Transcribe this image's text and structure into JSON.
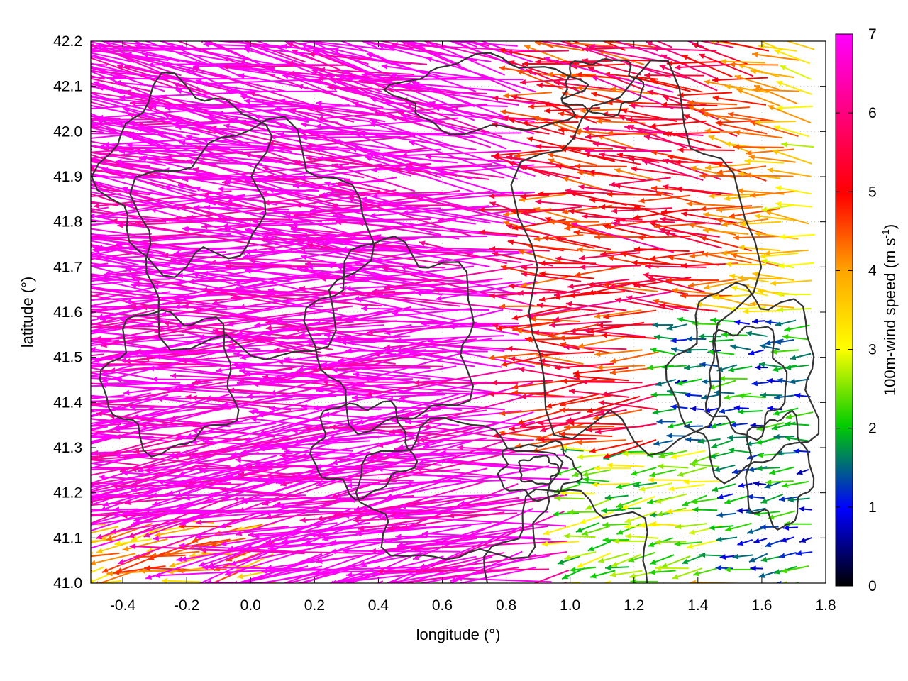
{
  "chart_data": {
    "type": "vector_field",
    "xlabel": "longitude (°)",
    "ylabel": "latitude (°)",
    "xlim": [
      -0.5,
      1.8
    ],
    "ylim": [
      41.0,
      42.2
    ],
    "xticks": [
      -0.4,
      -0.2,
      0.0,
      0.2,
      0.4,
      0.6,
      0.8,
      1.0,
      1.2,
      1.4,
      1.6,
      1.8
    ],
    "yticks": [
      41.0,
      41.1,
      41.2,
      41.3,
      41.4,
      41.5,
      41.6,
      41.7,
      41.8,
      41.9,
      42.0,
      42.1,
      42.2
    ],
    "colorbar": {
      "label": "100m-wind speed (m s",
      "label_superscript": "-1",
      "label_close": ")",
      "range": [
        0,
        7
      ],
      "ticks": [
        0,
        1,
        2,
        3,
        4,
        5,
        6,
        7
      ],
      "colors": [
        "#000000",
        "#0000ff",
        "#00cc00",
        "#ffff00",
        "#ffa500",
        "#ff0000",
        "#ff00ff"
      ]
    },
    "grid": "dotted",
    "contour_color": "#333333",
    "vector_summary": "Wind vectors point mostly westward; speeds about 7+ m/s over the western half, decreasing to about 0.5-3 m/s toward the east and south-east of the domain.",
    "speed_regions": [
      {
        "lon_range": [
          -0.5,
          0.9
        ],
        "lat_range": [
          41.15,
          42.2
        ],
        "speed": 7
      },
      {
        "lon_range": [
          0.9,
          1.3
        ],
        "lat_range": [
          41.3,
          42.2
        ],
        "speed": 5
      },
      {
        "lon_range": [
          1.3,
          1.8
        ],
        "lat_range": [
          41.0,
          41.6
        ],
        "speed": 1.5
      },
      {
        "lon_range": [
          1.0,
          1.5
        ],
        "lat_range": [
          41.0,
          41.3
        ],
        "speed": 2.5
      },
      {
        "lon_range": [
          -0.5,
          0.1
        ],
        "lat_range": [
          41.0,
          41.15
        ],
        "speed": 4
      }
    ]
  }
}
